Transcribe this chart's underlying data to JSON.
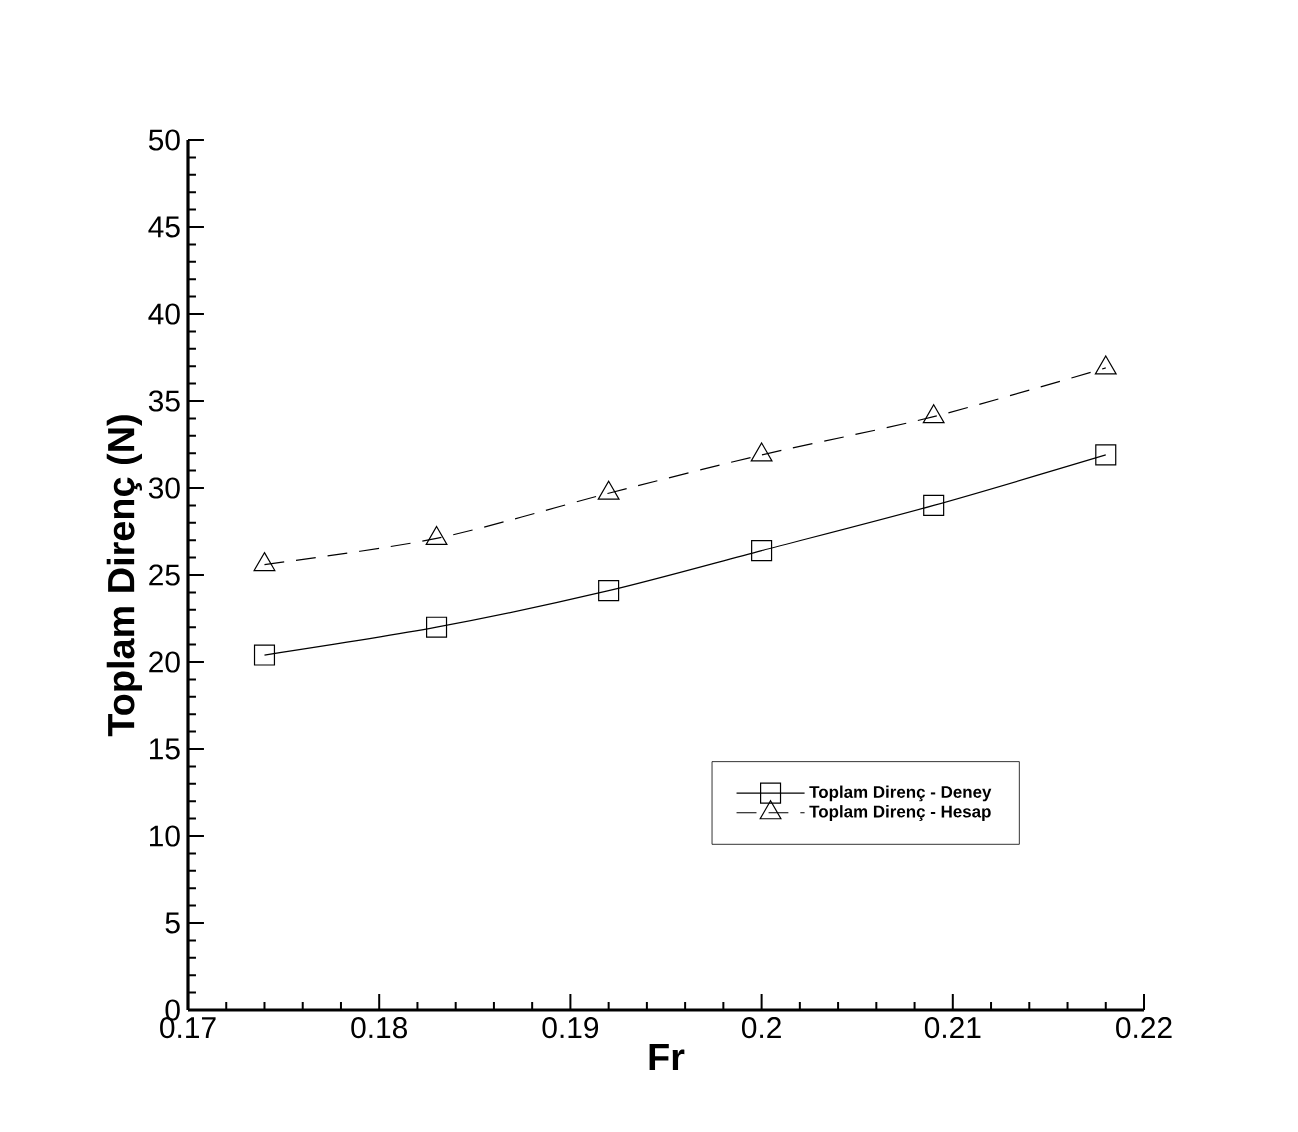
{
  "chart_data": {
    "type": "line",
    "xlabel": "Fr",
    "ylabel": "Toplam Direnç (N)",
    "xlim": [
      0.17,
      0.22
    ],
    "xticks": [
      0.17,
      0.18,
      0.19,
      0.2,
      0.21,
      0.22
    ],
    "ylim": [
      0,
      50
    ],
    "yticks": [
      0,
      5,
      10,
      15,
      20,
      25,
      30,
      35,
      40,
      45,
      50
    ],
    "x": [
      0.174,
      0.183,
      0.192,
      0.2,
      0.209,
      0.218
    ],
    "legend": "bottom right",
    "grid": false,
    "series": [
      {
        "name": "Toplam Direnç - Deney",
        "color": "#000000",
        "marker": "square",
        "line_style": "solid",
        "values": [
          20.4,
          22.0,
          24.1,
          26.4,
          29.0,
          31.9
        ]
      },
      {
        "name": "Toplam Direnç - Hesap",
        "color": "#000000",
        "marker": "triangle",
        "line_style": "dashed",
        "values": [
          25.6,
          27.1,
          29.7,
          31.9,
          34.1,
          36.9
        ]
      }
    ]
  }
}
